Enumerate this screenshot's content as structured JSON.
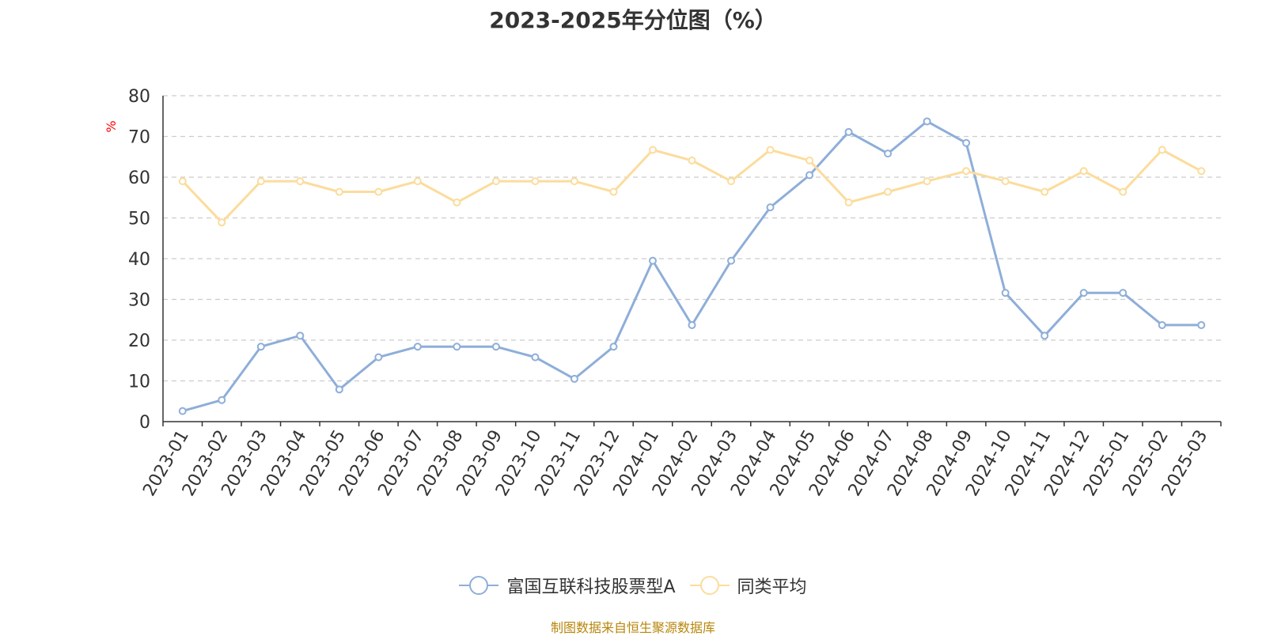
{
  "source_note": "制图数据来自恒生聚源数据库",
  "chart_data": {
    "type": "line",
    "title": "2023-2025年分位图（%）",
    "ylabel": "%",
    "xlabel": "",
    "ylim": [
      0,
      80
    ],
    "yticks": [
      0,
      10,
      20,
      30,
      40,
      50,
      60,
      70,
      80
    ],
    "grid": true,
    "legend_position": "bottom",
    "categories": [
      "2023-01",
      "2023-02",
      "2023-03",
      "2023-04",
      "2023-05",
      "2023-06",
      "2023-07",
      "2023-08",
      "2023-09",
      "2023-10",
      "2023-11",
      "2023-12",
      "2024-01",
      "2024-02",
      "2024-03",
      "2024-04",
      "2024-05",
      "2024-06",
      "2024-07",
      "2024-08",
      "2024-09",
      "2024-10",
      "2024-11",
      "2024-12",
      "2025-01",
      "2025-02",
      "2025-03"
    ],
    "series": [
      {
        "name": "富国互联科技股票型A",
        "color": "#8eaed9",
        "values": [
          2.6,
          5.3,
          18.4,
          21.1,
          7.9,
          15.8,
          18.4,
          18.4,
          18.4,
          15.8,
          10.5,
          18.4,
          39.5,
          23.7,
          39.5,
          52.6,
          60.5,
          71.1,
          65.8,
          73.7,
          68.4,
          31.6,
          21.1,
          31.6,
          31.6,
          23.7,
          23.7
        ]
      },
      {
        "name": "同类平均",
        "color": "#fcdc9c",
        "values": [
          59.0,
          48.9,
          59.0,
          59.0,
          56.4,
          56.4,
          59.0,
          53.8,
          59.0,
          59.0,
          59.0,
          56.4,
          66.7,
          64.1,
          59.0,
          66.7,
          64.1,
          53.8,
          56.4,
          59.0,
          61.5,
          59.0,
          56.4,
          61.5,
          56.4,
          66.7,
          61.5
        ]
      }
    ]
  }
}
